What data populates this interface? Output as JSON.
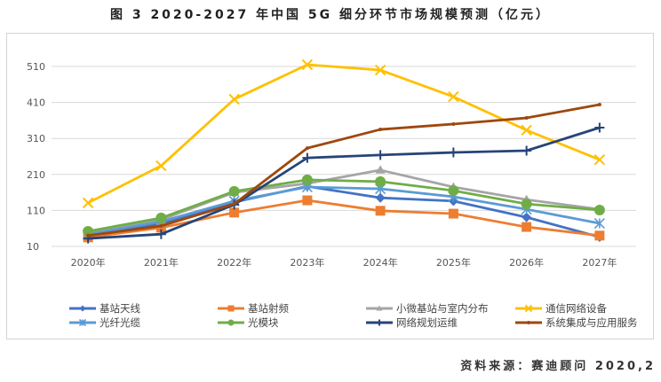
{
  "title": "图 3 2020-2027 年中国 5G 细分环节市场规模预测（亿元）",
  "source": "资料来源：赛迪顾问 2020,2",
  "chart_data": {
    "type": "line",
    "title": "图 3 2020-2027 年中国 5G 细分环节市场规模预测（亿元）",
    "xlabel": "",
    "ylabel": "",
    "categories": [
      "2020年",
      "2021年",
      "2022年",
      "2023年",
      "2024年",
      "2025年",
      "2026年",
      "2027年"
    ],
    "ylim": [
      10,
      560
    ],
    "yticks": [
      "10",
      "110",
      "210",
      "310",
      "410",
      "510"
    ],
    "grid": true,
    "legend": "bottom",
    "series": [
      {
        "name": "基站天线",
        "color": "#4472c4",
        "marker": "diamond",
        "values": [
          42,
          74,
          133,
          177,
          145,
          136,
          91,
          36
        ]
      },
      {
        "name": "基站射频",
        "color": "#ed7d31",
        "marker": "square",
        "values": [
          35,
          62,
          104,
          138,
          109,
          101,
          64,
          40
        ]
      },
      {
        "name": "小微基站与室内分布",
        "color": "#a5a5a5",
        "marker": "triangle",
        "values": [
          49,
          84,
          160,
          185,
          222,
          175,
          140,
          113
        ]
      },
      {
        "name": "通信网络设备",
        "color": "#ffc000",
        "marker": "x",
        "values": [
          131,
          234,
          419,
          515,
          500,
          426,
          333,
          251
        ]
      },
      {
        "name": "光纤光缆",
        "color": "#5b9bd5",
        "marker": "asterisk",
        "values": [
          44,
          79,
          136,
          175,
          170,
          148,
          113,
          74
        ]
      },
      {
        "name": "光模块",
        "color": "#70ad47",
        "marker": "circle",
        "values": [
          52,
          89,
          163,
          195,
          190,
          165,
          128,
          111
        ]
      },
      {
        "name": "网络规划运维",
        "color": "#264478",
        "marker": "plus",
        "values": [
          32,
          44,
          126,
          256,
          264,
          271,
          276,
          340
        ]
      },
      {
        "name": "系统集成与应用服务",
        "color": "#9e480e",
        "marker": "none",
        "values": [
          40,
          67,
          128,
          283,
          335,
          350,
          367,
          404
        ]
      }
    ]
  }
}
